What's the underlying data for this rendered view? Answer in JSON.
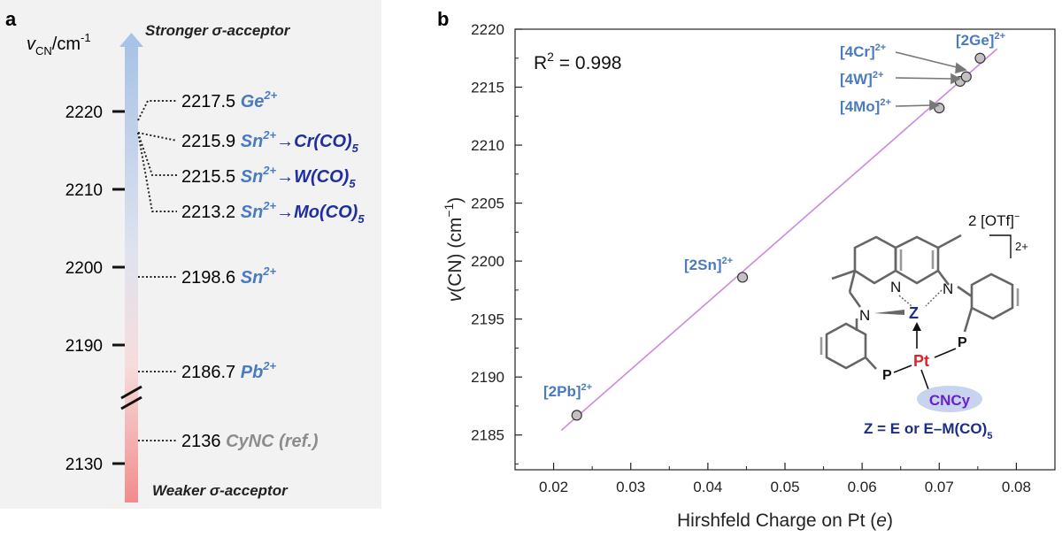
{
  "colors": {
    "panel_bg": "#f2f2f2",
    "blue_label": "#4a7abf",
    "dark_blue": "#1f2f9f",
    "gray_label": "#8c8c8c",
    "fit_line": "#cc88e0",
    "point_fill": "#c4c0c4",
    "arrow_top": "#a9c3e6",
    "arrow_bottom": "#f28b8b",
    "pt_red": "#e0222a",
    "z_blue": "#1a2d8a",
    "cncy_purple": "#6a1fd0",
    "cncy_ellipse": "#c8d3f0"
  },
  "panel_a": {
    "panel_letter": "a",
    "axis_title_main": "v",
    "axis_title_sub": "CN",
    "axis_title_unit": "/cm",
    "axis_title_exp": "-1",
    "top_label": "Stronger σ-acceptor",
    "bottom_label": "Weaker σ-acceptor",
    "ticks": [
      {
        "label": "2220",
        "value": 2220
      },
      {
        "label": "2210",
        "value": 2210
      },
      {
        "label": "2200",
        "value": 2200
      },
      {
        "label": "2190",
        "value": 2190
      },
      {
        "label": "2130",
        "value": 2130
      }
    ],
    "entries": [
      {
        "value": "2217.5",
        "species": "Ge",
        "charge": "2+",
        "acceptor": "",
        "sub": ""
      },
      {
        "value": "2215.9",
        "species": "Sn",
        "charge": "2+",
        "acceptor": "→Cr(CO)",
        "sub": "5"
      },
      {
        "value": "2215.5",
        "species": "Sn",
        "charge": "2+",
        "acceptor": "→W(CO)",
        "sub": "5"
      },
      {
        "value": "2213.2",
        "species": "Sn",
        "charge": "2+",
        "acceptor": "→Mo(CO)",
        "sub": "5"
      },
      {
        "value": "2198.6",
        "species": "Sn",
        "charge": "2+",
        "acceptor": "",
        "sub": ""
      },
      {
        "value": "2186.7",
        "species": "Pb",
        "charge": "2+",
        "acceptor": "",
        "sub": ""
      },
      {
        "value": "2136",
        "species": "CyNC (ref.)",
        "charge": "",
        "acceptor": "",
        "sub": ""
      }
    ]
  },
  "chart_data": {
    "type": "scatter",
    "panel_letter": "b",
    "xlabel_prefix": "Hirshfeld Charge on Pt (",
    "xlabel_italic": "e",
    "xlabel_suffix": ")",
    "ylabel_italic": "v",
    "ylabel_rest": "(CN) (cm",
    "ylabel_exp": "−1",
    "ylabel_close": ")",
    "xlim": [
      0.015,
      0.085
    ],
    "ylim": [
      2182,
      2220
    ],
    "xticks": [
      0.02,
      0.03,
      0.04,
      0.05,
      0.06,
      0.07,
      0.08
    ],
    "xtick_labels": [
      "0.02",
      "0.03",
      "0.04",
      "0.05",
      "0.06",
      "0.07",
      "0.08"
    ],
    "yticks": [
      2185,
      2190,
      2195,
      2200,
      2205,
      2210,
      2215,
      2220
    ],
    "ytick_labels": [
      "2185",
      "2190",
      "2195",
      "2200",
      "2205",
      "2210",
      "2215",
      "2220"
    ],
    "r2_label": "R",
    "r2_exp": "2",
    "r2_value": " = 0.998",
    "fit_line": {
      "x": [
        0.021,
        0.0775
      ],
      "y": [
        2185.4,
        2218.3
      ]
    },
    "points": [
      {
        "label": "[2Pb]",
        "charge": "2+",
        "x": 0.023,
        "y": 2186.7
      },
      {
        "label": "[2Sn]",
        "charge": "2+",
        "x": 0.0445,
        "y": 2198.6
      },
      {
        "label": "[4Mo]",
        "charge": "2+",
        "x": 0.07,
        "y": 2213.2
      },
      {
        "label": "[4W]",
        "charge": "2+",
        "x": 0.0727,
        "y": 2215.5
      },
      {
        "label": "[4Cr]",
        "charge": "2+",
        "x": 0.0735,
        "y": 2215.9
      },
      {
        "label": "[2Ge]",
        "charge": "2+",
        "x": 0.0753,
        "y": 2217.5
      }
    ]
  },
  "structure": {
    "counterion": "2 [OTf]",
    "counterion_charge": "−",
    "complex_charge": "2+",
    "atom_N": "N",
    "atom_P": "P",
    "atom_Z": "Z",
    "atom_Pt": "Pt",
    "ligand": "CNCy",
    "caption": "Z = E or E–M(CO)",
    "caption_sub": "5"
  }
}
